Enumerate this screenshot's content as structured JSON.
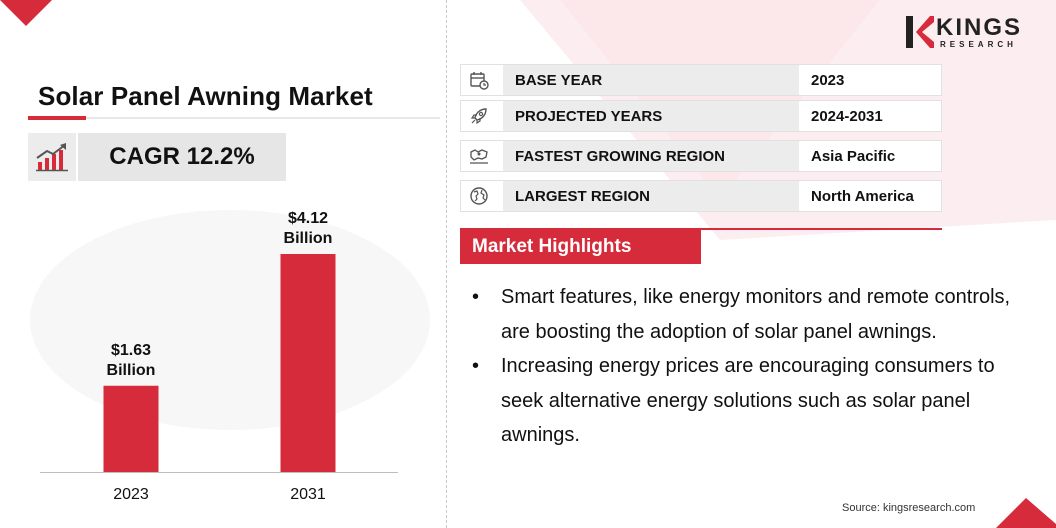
{
  "title": "Solar Panel Awning Market",
  "cagr": "CAGR 12.2%",
  "brand": {
    "name": "KINGS",
    "sub": "RESEARCH",
    "accent": "#d62b3a"
  },
  "info_rows": [
    {
      "icon": "calendar-clock-icon",
      "label": "BASE YEAR",
      "value": "2023"
    },
    {
      "icon": "rocket-icon",
      "label": "PROJECTED YEARS",
      "value": "2024-2031"
    },
    {
      "icon": "region-map-icon",
      "label": "FASTEST GROWING REGION",
      "value": "Asia Pacific"
    },
    {
      "icon": "globe-icon",
      "label": "LARGEST REGION",
      "value": "North America"
    }
  ],
  "highlights": {
    "heading": "Market Highlights",
    "items": [
      "Smart features, like energy monitors and remote controls, are boosting the adoption of solar panel awnings.",
      "Increasing energy prices are encouraging consumers to seek alternative energy solutions such as solar panel awnings."
    ]
  },
  "source": "Source: kingsresearch.com",
  "chart_data": {
    "type": "bar",
    "categories": [
      "2023",
      "2031"
    ],
    "values": [
      1.63,
      4.12
    ],
    "data_labels": [
      [
        "$1.63",
        "Billion"
      ],
      [
        "$4.12",
        "Billion"
      ]
    ],
    "unit": "Billion",
    "title": "",
    "xlabel": "",
    "ylabel": "",
    "ylim": [
      0,
      4.12
    ],
    "grid": false,
    "legend": "none",
    "bar_color": "#d62b3a"
  }
}
